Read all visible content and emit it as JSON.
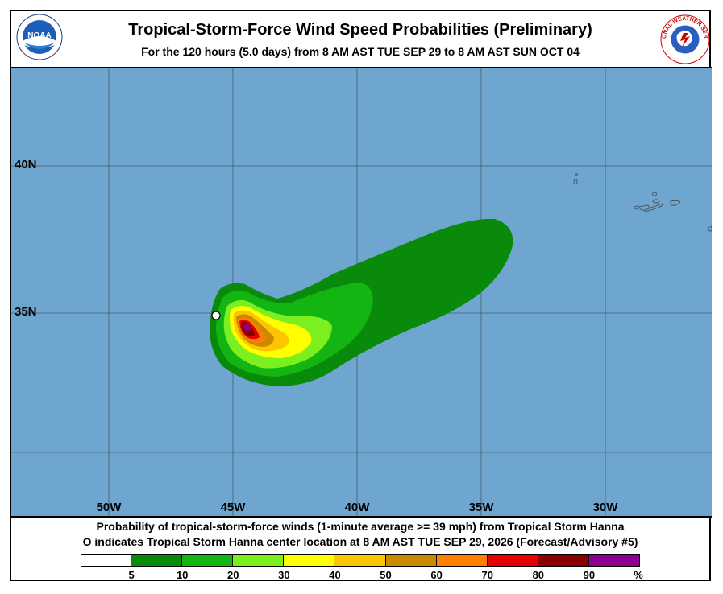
{
  "header": {
    "title": "Tropical-Storm-Force Wind Speed Probabilities (Preliminary)",
    "subtitle": "For the 120 hours (5.0 days) from 8 AM AST TUE SEP 29 to 8 AM AST SUN OCT 04"
  },
  "logos": {
    "left_text": "NOAA",
    "right_text": "NATIONAL WEATHER SERVICE"
  },
  "map": {
    "ocean_color": "#6fa6cf",
    "lat_labels": [
      "40N",
      "35N"
    ],
    "lon_labels": [
      "50W",
      "45W",
      "40W",
      "35W",
      "30W"
    ],
    "storm_center_marker": "white-circle"
  },
  "footer": {
    "line1": "Probability of tropical-storm-force winds (1-minute average >= 39 mph) from Tropical Storm Hanna",
    "line2": "O indicates Tropical Storm Hanna center location at 8 AM AST TUE SEP 29, 2026 (Forecast/Advisory #5)"
  },
  "legend": {
    "colors": [
      "#ffffff",
      "#0a8a0a",
      "#12b512",
      "#7cf01e",
      "#ffff00",
      "#ffc400",
      "#c98a00",
      "#ff7f00",
      "#e60000",
      "#8a0000",
      "#8e008e"
    ],
    "labels": [
      "5",
      "10",
      "20",
      "30",
      "40",
      "50",
      "60",
      "70",
      "80",
      "90",
      "%"
    ]
  }
}
